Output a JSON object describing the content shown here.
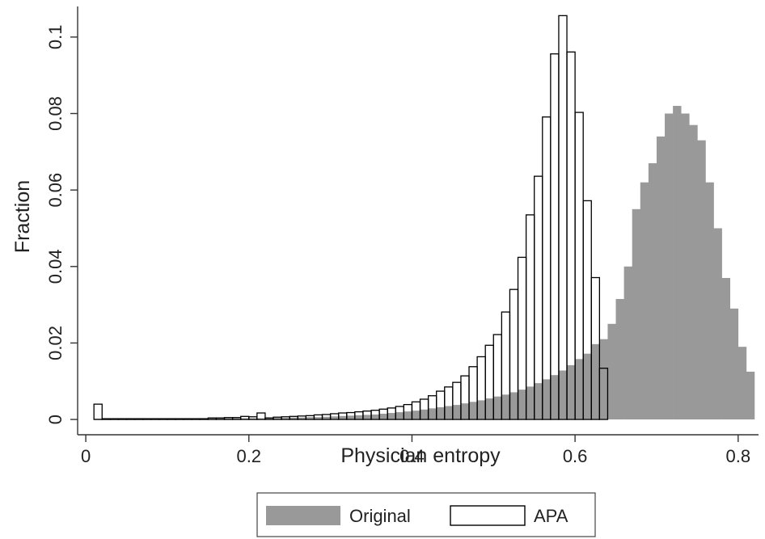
{
  "chart_data": {
    "type": "bar",
    "subtype": "overlaid-histogram",
    "title": "",
    "xlabel": "Physician entropy",
    "ylabel": "Fraction",
    "xlim": [
      -0.01,
      0.825
    ],
    "ylim": [
      -0.004,
      0.108
    ],
    "bin_width": 0.01,
    "x_ticks": [
      0,
      0.2,
      0.4,
      0.6,
      0.8
    ],
    "x_tick_labels": [
      "0",
      "0.2",
      "0.4",
      "0.6",
      "0.8"
    ],
    "y_ticks": [
      0,
      0.02,
      0.04,
      0.06,
      0.08,
      0.1
    ],
    "y_tick_labels": [
      "0",
      "0.02",
      "0.04",
      "0.06",
      "0.08",
      "0.1"
    ],
    "grid": false,
    "legend_position": "bottom",
    "series": [
      {
        "name": "Original",
        "style": "filled",
        "color": "#999999",
        "x": [
          0.01,
          0.02,
          0.03,
          0.04,
          0.05,
          0.06,
          0.07,
          0.08,
          0.09,
          0.1,
          0.11,
          0.12,
          0.13,
          0.14,
          0.15,
          0.16,
          0.17,
          0.18,
          0.19,
          0.2,
          0.21,
          0.22,
          0.23,
          0.24,
          0.25,
          0.26,
          0.27,
          0.28,
          0.29,
          0.3,
          0.31,
          0.32,
          0.33,
          0.34,
          0.35,
          0.36,
          0.37,
          0.38,
          0.39,
          0.4,
          0.41,
          0.42,
          0.43,
          0.44,
          0.45,
          0.46,
          0.47,
          0.48,
          0.49,
          0.5,
          0.51,
          0.52,
          0.53,
          0.54,
          0.55,
          0.56,
          0.57,
          0.58,
          0.59,
          0.6,
          0.61,
          0.62,
          0.63,
          0.64,
          0.65,
          0.66,
          0.67,
          0.68,
          0.69,
          0.7,
          0.71,
          0.72,
          0.73,
          0.74,
          0.75,
          0.76,
          0.77,
          0.78,
          0.79,
          0.8,
          0.81
        ],
        "values": [
          0.0002,
          0.0002,
          0.0002,
          0.0002,
          0.0002,
          0.0002,
          0.0002,
          0.0002,
          0.0002,
          0.0002,
          0.0002,
          0.0002,
          0.0002,
          0.0002,
          0.0003,
          0.0003,
          0.0003,
          0.0003,
          0.0003,
          0.0003,
          0.0003,
          0.0003,
          0.0004,
          0.0004,
          0.0005,
          0.0005,
          0.0006,
          0.0006,
          0.0007,
          0.0008,
          0.0009,
          0.001,
          0.0011,
          0.0012,
          0.0013,
          0.0015,
          0.0017,
          0.0019,
          0.0021,
          0.0023,
          0.0026,
          0.0029,
          0.0032,
          0.0035,
          0.0038,
          0.0042,
          0.0046,
          0.005,
          0.0055,
          0.006,
          0.0065,
          0.0071,
          0.0078,
          0.0086,
          0.0095,
          0.0105,
          0.0116,
          0.0128,
          0.0142,
          0.0158,
          0.0172,
          0.0197,
          0.021,
          0.025,
          0.0315,
          0.04,
          0.055,
          0.062,
          0.067,
          0.074,
          0.08,
          0.082,
          0.08,
          0.077,
          0.073,
          0.062,
          0.05,
          0.037,
          0.029,
          0.019,
          0.0125
        ]
      },
      {
        "name": "APA",
        "style": "outline",
        "color": "#000000",
        "x": [
          0.01,
          0.02,
          0.03,
          0.04,
          0.05,
          0.06,
          0.07,
          0.08,
          0.09,
          0.1,
          0.11,
          0.12,
          0.13,
          0.14,
          0.15,
          0.16,
          0.17,
          0.18,
          0.19,
          0.2,
          0.21,
          0.22,
          0.23,
          0.24,
          0.25,
          0.26,
          0.27,
          0.28,
          0.29,
          0.3,
          0.31,
          0.32,
          0.33,
          0.34,
          0.35,
          0.36,
          0.37,
          0.38,
          0.39,
          0.4,
          0.41,
          0.42,
          0.43,
          0.44,
          0.45,
          0.46,
          0.47,
          0.48,
          0.49,
          0.5,
          0.51,
          0.52,
          0.53,
          0.54,
          0.55,
          0.56,
          0.57,
          0.58,
          0.59,
          0.6,
          0.61,
          0.62,
          0.63
        ],
        "values": [
          0.004,
          0.0002,
          0.0002,
          0.0002,
          0.0002,
          0.0002,
          0.0002,
          0.0002,
          0.0002,
          0.0002,
          0.0002,
          0.0002,
          0.0002,
          0.0002,
          0.0004,
          0.0004,
          0.0005,
          0.0005,
          0.0008,
          0.0007,
          0.0017,
          0.0004,
          0.0006,
          0.0007,
          0.0008,
          0.0009,
          0.001,
          0.0012,
          0.0013,
          0.0015,
          0.0017,
          0.0018,
          0.002,
          0.0022,
          0.0024,
          0.0027,
          0.003,
          0.0034,
          0.0039,
          0.0046,
          0.0053,
          0.0062,
          0.0074,
          0.0085,
          0.0097,
          0.0114,
          0.0138,
          0.0164,
          0.0194,
          0.0222,
          0.0281,
          0.034,
          0.0424,
          0.0535,
          0.0636,
          0.0791,
          0.0956,
          0.1056,
          0.0961,
          0.0803,
          0.0572,
          0.0371,
          0.0134
        ]
      }
    ]
  }
}
